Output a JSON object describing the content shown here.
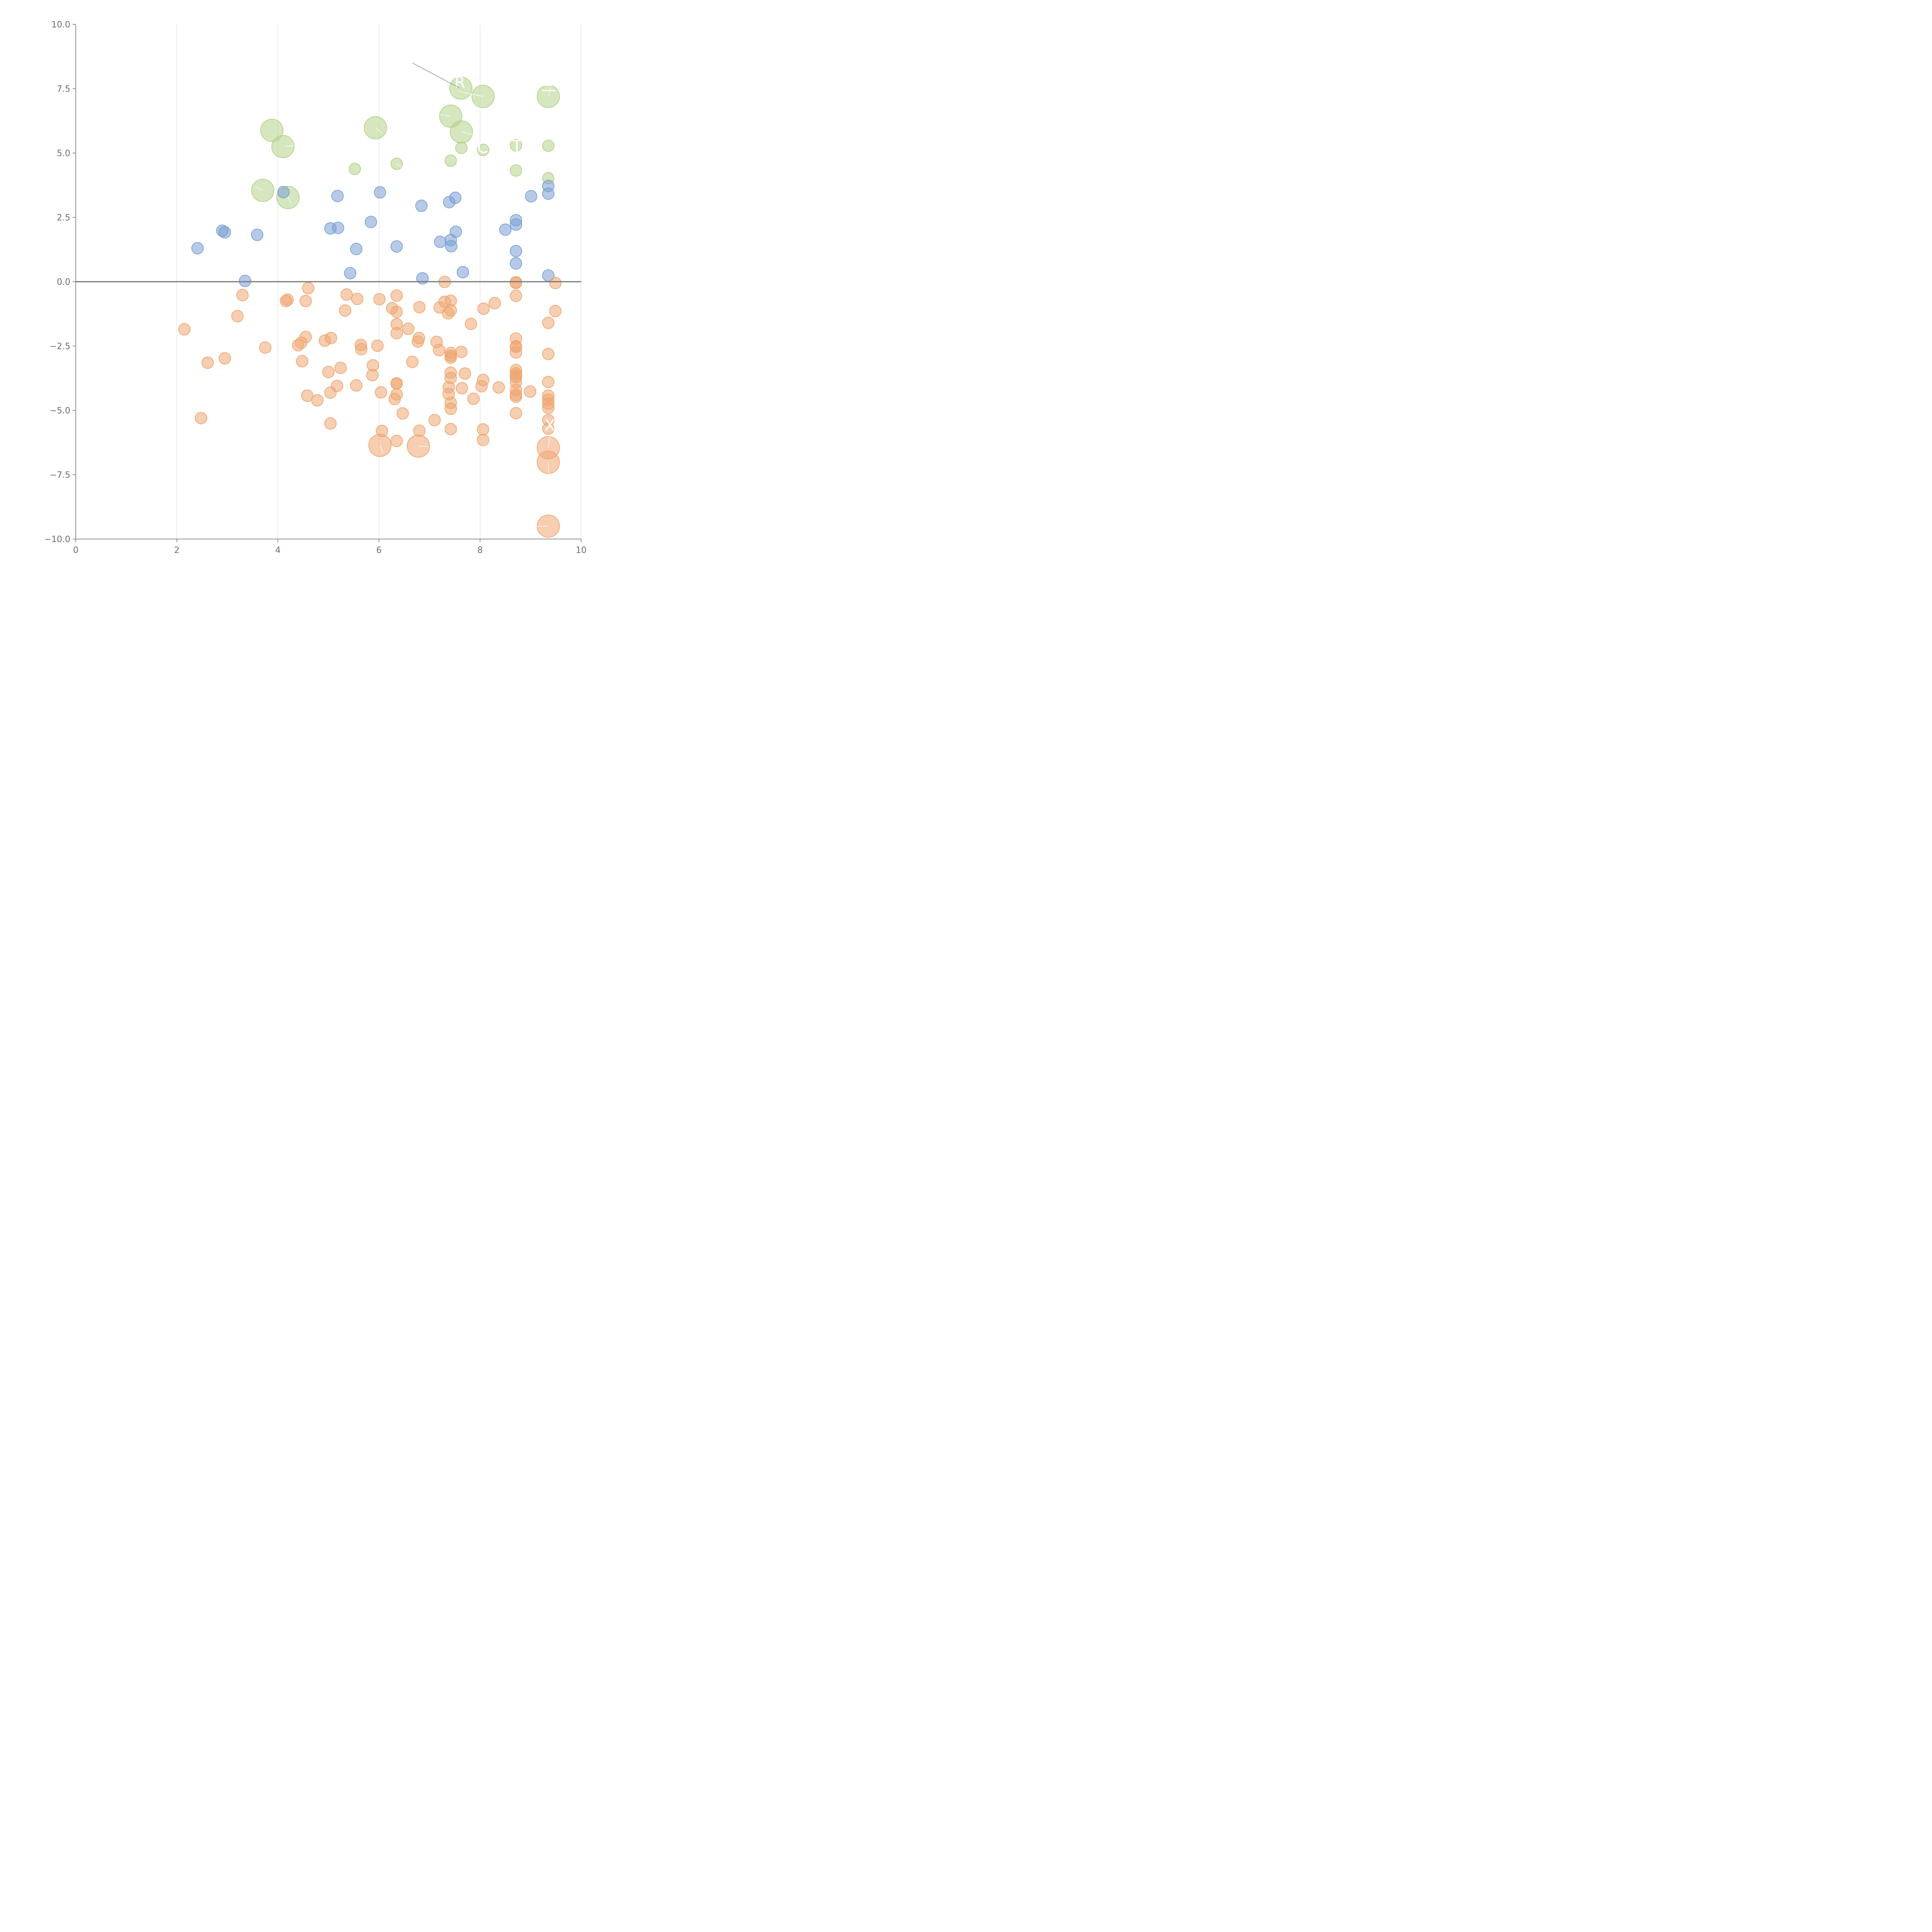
{
  "chart_data": {
    "type": "scatter",
    "title": "",
    "xlabel": "",
    "ylabel": "",
    "xlim": [
      0,
      10
    ],
    "ylim": [
      -10,
      10
    ],
    "x_ticks": [
      0,
      2,
      4,
      6,
      8,
      10
    ],
    "x_tick_labels": [
      "0",
      "2",
      "4",
      "6",
      "8",
      "10"
    ],
    "y_ticks": [
      -10,
      -7.5,
      -5,
      -2.5,
      0,
      2.5,
      5,
      7.5,
      10
    ],
    "y_tick_labels": [
      "−10.0",
      "−7.5",
      "−5.0",
      "−2.5",
      "0.0",
      "2.5",
      "5.0",
      "7.5",
      "10.0"
    ],
    "vertical_grid": true,
    "horizontal_grid": false,
    "zero_line": true,
    "legend": "none",
    "colors": {
      "positive": "#7a9fd4",
      "high": "#b5d18a",
      "negative": "#eea671",
      "axis": "#6e6e6e",
      "grid": "#d9d9d9"
    },
    "point_size_note": "marker radius in data-free relative units",
    "series": [
      {
        "color_key": "high",
        "points": [
          [
            3.88,
            5.88,
            2
          ],
          [
            4.1,
            5.25,
            2
          ],
          [
            3.7,
            3.55,
            2
          ],
          [
            4.2,
            3.27,
            2
          ],
          [
            5.93,
            5.98,
            2
          ],
          [
            7.42,
            6.43,
            2
          ],
          [
            7.62,
            7.52,
            2
          ],
          [
            8.06,
            7.2,
            2
          ],
          [
            7.63,
            5.82,
            2
          ],
          [
            9.35,
            7.2,
            2
          ],
          [
            5.52,
            4.38,
            1
          ],
          [
            6.35,
            4.58,
            1
          ],
          [
            7.42,
            4.7,
            1
          ],
          [
            7.63,
            5.2,
            1
          ],
          [
            8.06,
            5.12,
            1
          ],
          [
            8.71,
            5.3,
            1
          ],
          [
            8.71,
            4.32,
            1
          ],
          [
            9.35,
            5.28,
            1
          ],
          [
            9.35,
            4.02,
            1
          ]
        ]
      },
      {
        "color_key": "positive",
        "points": [
          [
            2.41,
            1.3,
            1
          ],
          [
            2.9,
            1.98,
            1
          ],
          [
            2.95,
            1.92,
            1
          ],
          [
            3.35,
            0.03,
            1
          ],
          [
            3.59,
            1.82,
            1
          ],
          [
            4.11,
            3.48,
            1
          ],
          [
            5.04,
            2.07,
            1
          ],
          [
            5.18,
            3.33,
            1
          ],
          [
            5.19,
            2.09,
            1
          ],
          [
            5.43,
            0.33,
            1
          ],
          [
            5.55,
            1.27,
            1
          ],
          [
            5.84,
            2.32,
            1
          ],
          [
            6.02,
            3.47,
            1
          ],
          [
            6.35,
            1.37,
            1
          ],
          [
            6.84,
            2.95,
            1
          ],
          [
            6.86,
            0.13,
            1
          ],
          [
            7.21,
            1.55,
            1
          ],
          [
            7.39,
            3.09,
            1
          ],
          [
            7.42,
            1.62,
            1
          ],
          [
            7.43,
            1.38,
            1
          ],
          [
            7.51,
            3.26,
            1
          ],
          [
            7.52,
            1.94,
            1
          ],
          [
            7.66,
            0.37,
            1
          ],
          [
            8.5,
            2.02,
            1
          ],
          [
            8.71,
            2.39,
            1
          ],
          [
            8.71,
            2.22,
            1
          ],
          [
            8.71,
            1.19,
            1
          ],
          [
            8.71,
            0.71,
            1
          ],
          [
            9.01,
            3.32,
            1
          ],
          [
            9.35,
            3.72,
            1
          ],
          [
            9.35,
            3.42,
            1
          ],
          [
            9.35,
            0.24,
            1
          ]
        ]
      },
      {
        "color_key": "negative",
        "points": [
          [
            2.15,
            -1.85,
            1
          ],
          [
            2.48,
            -5.3,
            1
          ],
          [
            2.61,
            -3.15,
            1
          ],
          [
            2.95,
            -2.98,
            1
          ],
          [
            3.2,
            -1.34,
            1
          ],
          [
            3.3,
            -0.52,
            1
          ],
          [
            3.75,
            -2.56,
            1
          ],
          [
            4.16,
            -0.75,
            1
          ],
          [
            4.19,
            -0.7,
            1
          ],
          [
            4.4,
            -2.47,
            1
          ],
          [
            4.46,
            -2.37,
            1
          ],
          [
            4.48,
            -3.09,
            1
          ],
          [
            4.55,
            -2.15,
            1
          ],
          [
            4.55,
            -0.75,
            1
          ],
          [
            4.58,
            -4.43,
            1
          ],
          [
            4.6,
            -0.25,
            1
          ],
          [
            4.78,
            -4.61,
            1
          ],
          [
            4.93,
            -2.29,
            1
          ],
          [
            5.0,
            -3.51,
            1
          ],
          [
            5.04,
            -4.31,
            1
          ],
          [
            5.04,
            -5.51,
            1
          ],
          [
            5.05,
            -2.19,
            1
          ],
          [
            5.17,
            -4.05,
            1
          ],
          [
            5.24,
            -3.35,
            1
          ],
          [
            5.33,
            -1.12,
            1
          ],
          [
            5.36,
            -0.5,
            1
          ],
          [
            5.55,
            -4.03,
            1
          ],
          [
            5.57,
            -0.67,
            1
          ],
          [
            5.64,
            -2.46,
            1
          ],
          [
            5.65,
            -2.62,
            1
          ],
          [
            5.87,
            -3.63,
            1
          ],
          [
            5.88,
            -3.25,
            1
          ],
          [
            5.97,
            -2.49,
            1
          ],
          [
            6.01,
            -0.68,
            1
          ],
          [
            6.04,
            -4.3,
            1
          ],
          [
            6.06,
            -5.8,
            1
          ],
          [
            6.26,
            -1.03,
            1
          ],
          [
            6.31,
            -4.56,
            1
          ],
          [
            6.35,
            -0.54,
            1
          ],
          [
            6.35,
            -1.17,
            1
          ],
          [
            6.35,
            -1.65,
            1
          ],
          [
            6.35,
            -2.0,
            1
          ],
          [
            6.35,
            -3.96,
            1
          ],
          [
            6.35,
            -3.95,
            1
          ],
          [
            6.35,
            -4.38,
            1
          ],
          [
            6.35,
            -6.19,
            1
          ],
          [
            6.47,
            -5.12,
            1
          ],
          [
            6.58,
            -1.83,
            1
          ],
          [
            6.66,
            -3.12,
            1
          ],
          [
            6.77,
            -2.33,
            1
          ],
          [
            6.79,
            -2.19,
            1
          ],
          [
            6.8,
            -5.79,
            1
          ],
          [
            6.8,
            -0.99,
            1
          ],
          [
            7.1,
            -5.38,
            1
          ],
          [
            7.14,
            -2.34,
            1
          ],
          [
            7.19,
            -2.66,
            1
          ],
          [
            7.2,
            -1.0,
            1
          ],
          [
            7.3,
            -0.01,
            1
          ],
          [
            7.3,
            -0.78,
            1
          ],
          [
            7.37,
            -1.23,
            1
          ],
          [
            7.38,
            -4.1,
            1
          ],
          [
            7.38,
            -4.37,
            1
          ],
          [
            7.42,
            -0.74,
            1
          ],
          [
            7.42,
            -1.11,
            1
          ],
          [
            7.42,
            -2.77,
            1
          ],
          [
            7.42,
            -2.88,
            1
          ],
          [
            7.42,
            -2.95,
            1
          ],
          [
            7.42,
            -3.54,
            1
          ],
          [
            7.42,
            -3.74,
            1
          ],
          [
            7.42,
            -4.71,
            1
          ],
          [
            7.42,
            -4.94,
            1
          ],
          [
            7.42,
            -5.73,
            1
          ],
          [
            7.63,
            -2.73,
            1
          ],
          [
            7.64,
            -4.14,
            1
          ],
          [
            7.7,
            -3.57,
            1
          ],
          [
            7.82,
            -1.64,
            1
          ],
          [
            7.87,
            -4.55,
            1
          ],
          [
            8.03,
            -4.06,
            1
          ],
          [
            8.06,
            -3.82,
            1
          ],
          [
            8.06,
            -5.74,
            1
          ],
          [
            8.06,
            -6.15,
            1
          ],
          [
            8.07,
            -1.05,
            1
          ],
          [
            8.29,
            -0.83,
            1
          ],
          [
            8.37,
            -4.11,
            1
          ],
          [
            8.71,
            -0.02,
            1
          ],
          [
            8.71,
            -0.05,
            1
          ],
          [
            8.71,
            -0.55,
            1
          ],
          [
            8.71,
            -2.21,
            1
          ],
          [
            8.71,
            -2.51,
            1
          ],
          [
            8.71,
            -2.53,
            1
          ],
          [
            8.71,
            -2.75,
            1
          ],
          [
            8.71,
            -3.43,
            1
          ],
          [
            8.71,
            -3.56,
            1
          ],
          [
            8.71,
            -3.63,
            1
          ],
          [
            8.71,
            -3.71,
            1
          ],
          [
            8.71,
            -3.91,
            1
          ],
          [
            8.71,
            -4.21,
            1
          ],
          [
            8.71,
            -4.4,
            1
          ],
          [
            8.71,
            -4.47,
            1
          ],
          [
            8.71,
            -5.11,
            1
          ],
          [
            8.99,
            -4.27,
            1
          ],
          [
            9.35,
            -1.6,
            1
          ],
          [
            9.35,
            -2.81,
            1
          ],
          [
            9.35,
            -3.9,
            1
          ],
          [
            9.35,
            -4.43,
            1
          ],
          [
            9.35,
            -4.59,
            1
          ],
          [
            9.35,
            -4.74,
            1
          ],
          [
            9.35,
            -4.9,
            1
          ],
          [
            9.35,
            -5.38,
            1
          ],
          [
            9.35,
            -5.71,
            1
          ],
          [
            9.49,
            -0.05,
            1
          ],
          [
            9.49,
            -1.14,
            1
          ],
          [
            6.02,
            -6.36,
            2
          ],
          [
            6.78,
            -6.39,
            2
          ],
          [
            9.35,
            -6.45,
            2
          ],
          [
            9.35,
            -7.02,
            2
          ],
          [
            9.35,
            -9.5,
            2
          ]
        ]
      }
    ],
    "annotations": [
      {
        "text": "R",
        "x": 7.6,
        "y": 7.75
      },
      {
        "text": "三",
        "x": 9.36,
        "y": 7.62
      },
      {
        "text": "C",
        "x": 8.05,
        "y": 5.22
      },
      {
        "text": "T",
        "x": 8.73,
        "y": 5.28
      },
      {
        "text": "X",
        "x": 9.38,
        "y": -5.58
      }
    ]
  }
}
